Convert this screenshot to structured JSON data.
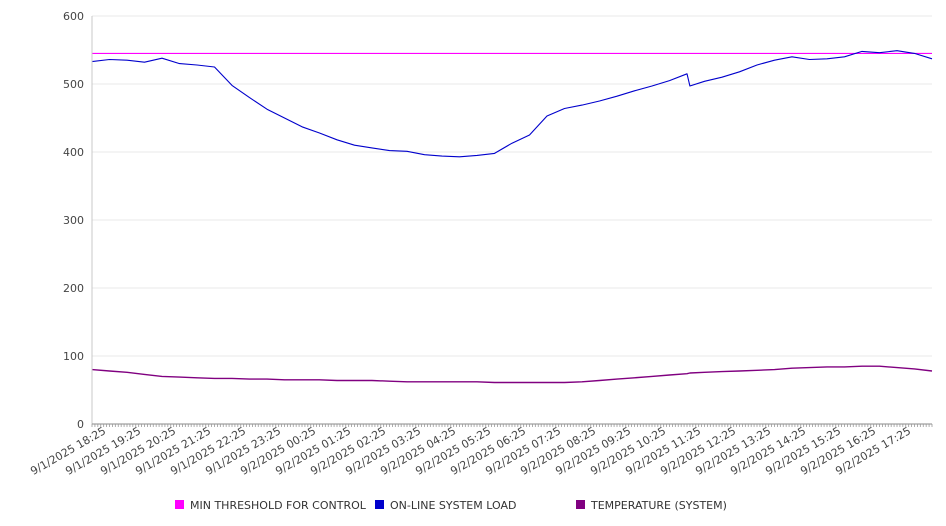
{
  "chart_data": {
    "type": "line",
    "title": "",
    "xlabel": "",
    "ylabel": "",
    "ylim": [
      0,
      600
    ],
    "yticks": [
      0,
      100,
      200,
      300,
      400,
      500,
      600
    ],
    "grid": "horizontal",
    "legend_position": "bottom",
    "x_tick_labels": [
      "9/1/2025 18:25",
      "9/1/2025 19:25",
      "9/1/2025 20:25",
      "9/1/2025 21:25",
      "9/1/2025 22:25",
      "9/1/2025 23:25",
      "9/2/2025 00:25",
      "9/2/2025 01:25",
      "9/2/2025 02:25",
      "9/2/2025 03:25",
      "9/2/2025 04:25",
      "9/2/2025 05:25",
      "9/2/2025 06:25",
      "9/2/2025 07:25",
      "9/2/2025 08:25",
      "9/2/2025 09:25",
      "9/2/2025 10:25",
      "9/2/2025 11:25",
      "9/2/2025 12:25",
      "9/2/2025 13:25",
      "9/2/2025 14:25",
      "9/2/2025 15:25",
      "9/2/2025 16:25",
      "9/2/2025 17:25"
    ],
    "x": [
      "9/1/2025 18:00",
      "9/1/2025 18:30",
      "9/1/2025 19:00",
      "9/1/2025 19:30",
      "9/1/2025 20:00",
      "9/1/2025 20:30",
      "9/1/2025 21:00",
      "9/1/2025 21:30",
      "9/1/2025 22:00",
      "9/1/2025 22:30",
      "9/1/2025 23:00",
      "9/1/2025 23:30",
      "9/2/2025 00:00",
      "9/2/2025 00:30",
      "9/2/2025 01:00",
      "9/2/2025 01:30",
      "9/2/2025 02:00",
      "9/2/2025 02:30",
      "9/2/2025 03:00",
      "9/2/2025 03:30",
      "9/2/2025 04:00",
      "9/2/2025 04:30",
      "9/2/2025 05:00",
      "9/2/2025 05:30",
      "9/2/2025 06:00",
      "9/2/2025 06:30",
      "9/2/2025 07:00",
      "9/2/2025 07:30",
      "9/2/2025 08:00",
      "9/2/2025 08:30",
      "9/2/2025 09:00",
      "9/2/2025 09:30",
      "9/2/2025 10:00",
      "9/2/2025 10:30",
      "9/2/2025 11:00",
      "9/2/2025 11:05",
      "9/2/2025 11:30",
      "9/2/2025 12:00",
      "9/2/2025 12:30",
      "9/2/2025 13:00",
      "9/2/2025 13:30",
      "9/2/2025 14:00",
      "9/2/2025 14:30",
      "9/2/2025 15:00",
      "9/2/2025 15:30",
      "9/2/2025 16:00",
      "9/2/2025 16:30",
      "9/2/2025 17:00",
      "9/2/2025 17:30",
      "9/2/2025 18:00"
    ],
    "series": [
      {
        "name": "MIN THRESHOLD FOR CONTROL",
        "color": "#ff00ff",
        "values": [
          545,
          545,
          545,
          545,
          545,
          545,
          545,
          545,
          545,
          545,
          545,
          545,
          545,
          545,
          545,
          545,
          545,
          545,
          545,
          545,
          545,
          545,
          545,
          545,
          545,
          545,
          545,
          545,
          545,
          545,
          545,
          545,
          545,
          545,
          545,
          545,
          545,
          545,
          545,
          545,
          545,
          545,
          545,
          545,
          545,
          545,
          545,
          545,
          545,
          545
        ]
      },
      {
        "name": "ON-LINE SYSTEM LOAD",
        "color": "#0000cc",
        "values": [
          533,
          536,
          535,
          532,
          538,
          530,
          528,
          525,
          498,
          480,
          463,
          450,
          437,
          428,
          418,
          410,
          406,
          402,
          401,
          396,
          394,
          393,
          395,
          398,
          413,
          425,
          453,
          464,
          469,
          475,
          482,
          490,
          497,
          505,
          515,
          497,
          504,
          510,
          518,
          528,
          535,
          540,
          536,
          537,
          540,
          548,
          546,
          549,
          545,
          537
        ]
      },
      {
        "name": "TEMPERATURE (SYSTEM)",
        "color": "#800080",
        "values": [
          80,
          78,
          76,
          73,
          70,
          69,
          68,
          67,
          67,
          66,
          66,
          65,
          65,
          65,
          64,
          64,
          64,
          63,
          62,
          62,
          62,
          62,
          62,
          61,
          61,
          61,
          61,
          61,
          62,
          64,
          66,
          68,
          70,
          72,
          74,
          75,
          76,
          77,
          78,
          79,
          80,
          82,
          83,
          84,
          84,
          85,
          85,
          83,
          81,
          78
        ]
      }
    ]
  }
}
